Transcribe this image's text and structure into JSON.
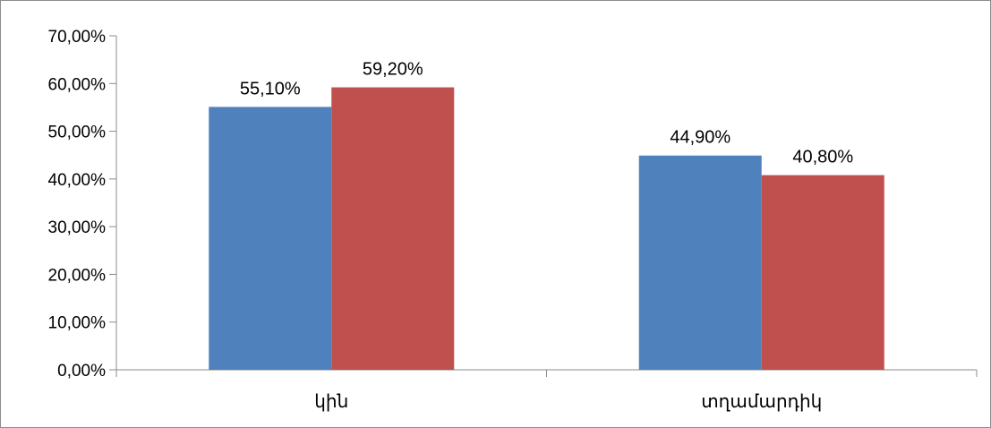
{
  "chart_data": {
    "type": "bar",
    "categories": [
      "կին",
      "տղամարդիկ"
    ],
    "series": [
      {
        "values": [
          55.1,
          44.9
        ],
        "labels": [
          "55,10%",
          "44,90%"
        ],
        "color": "#4F81BD"
      },
      {
        "values": [
          59.2,
          40.8
        ],
        "labels": [
          "59,20%",
          "40,80%"
        ],
        "color": "#C0504D"
      }
    ],
    "ylim": [
      0,
      70
    ],
    "yticks": [
      {
        "value": 0,
        "label": "0,00%"
      },
      {
        "value": 10,
        "label": "10,00%"
      },
      {
        "value": 20,
        "label": "20,00%"
      },
      {
        "value": 30,
        "label": "30,00%"
      },
      {
        "value": 40,
        "label": "40,00%"
      },
      {
        "value": 50,
        "label": "50,00%"
      },
      {
        "value": 60,
        "label": "60,00%"
      },
      {
        "value": 70,
        "label": "70,00%"
      }
    ],
    "grid": false,
    "legend": "none",
    "title": "",
    "xlabel": "",
    "ylabel": ""
  }
}
